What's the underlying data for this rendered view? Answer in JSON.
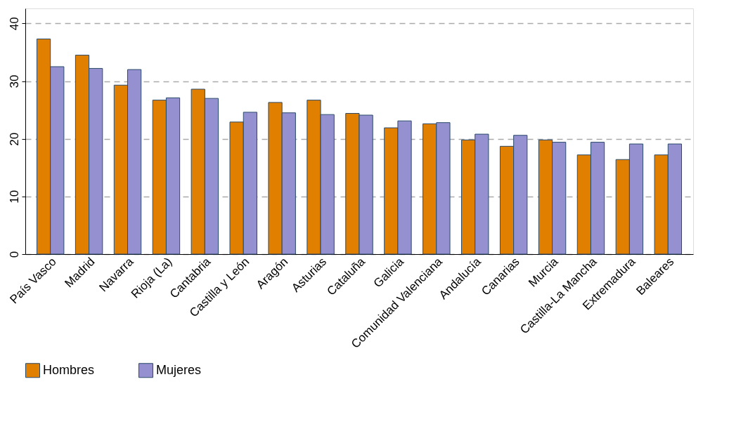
{
  "chart_data": {
    "type": "bar",
    "categories": [
      "País Vasco",
      "Madrid",
      "Navarra",
      "Rioja (La)",
      "Cantabria",
      "Castilla y León",
      "Aragón",
      "Asturias",
      "Cataluña",
      "Galicia",
      "Comunidad Valenciana",
      "Andalucía",
      "Canarias",
      "Murcia",
      "Castilla-La Mancha",
      "Extremadura",
      "Baleares"
    ],
    "series": [
      {
        "name": "Hombres",
        "color": "#e07f00",
        "values": [
          37.3,
          34.5,
          29.3,
          26.7,
          28.6,
          22.9,
          26.3,
          26.7,
          24.4,
          21.9,
          22.6,
          19.8,
          18.7,
          19.8,
          17.2,
          16.4,
          17.2
        ]
      },
      {
        "name": "Mujeres",
        "color": "#9590d0",
        "values": [
          32.5,
          32.2,
          32.0,
          27.1,
          27.0,
          24.6,
          24.5,
          24.2,
          24.1,
          23.1,
          22.8,
          20.8,
          20.6,
          19.4,
          19.4,
          19.1,
          19.1
        ]
      }
    ],
    "ylim": [
      0,
      42.6
    ],
    "yticks": [
      0,
      10,
      20,
      30,
      40
    ],
    "grid": "y",
    "legend": "bottom"
  }
}
